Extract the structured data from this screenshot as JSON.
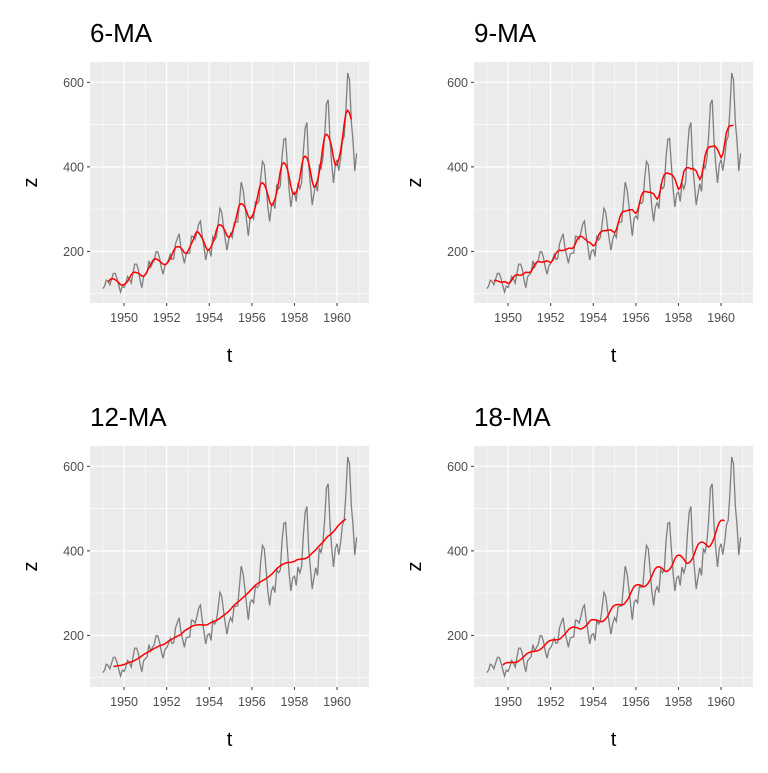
{
  "chart_data": [
    {
      "type": "line",
      "title": "6-MA",
      "ma_order": 6,
      "xlabel": "t",
      "ylabel": "z"
    },
    {
      "type": "line",
      "title": "9-MA",
      "ma_order": 9,
      "xlabel": "t",
      "ylabel": "z"
    },
    {
      "type": "line",
      "title": "12-MA",
      "ma_order": 12,
      "xlabel": "t",
      "ylabel": "z"
    },
    {
      "type": "line",
      "title": "18-MA",
      "ma_order": 18,
      "xlabel": "t",
      "ylabel": "z"
    }
  ],
  "shared": {
    "x_start": 1949,
    "frequency": 12,
    "xlim": [
      1948.4,
      1961.5
    ],
    "ylim": [
      78,
      648
    ],
    "x_ticks": [
      "1950",
      "1952",
      "1954",
      "1956",
      "1958",
      "1960"
    ],
    "y_ticks": [
      "200",
      "400",
      "600"
    ],
    "grid": true,
    "colors": {
      "raw": "#7f7f7f",
      "ma": "#ff0000",
      "panel": "#ebebeb",
      "grid": "#ffffff"
    },
    "z": [
      112,
      118,
      132,
      129,
      121,
      135,
      148,
      148,
      136,
      119,
      104,
      118,
      115,
      126,
      141,
      135,
      125,
      149,
      170,
      170,
      158,
      133,
      114,
      140,
      145,
      150,
      178,
      163,
      172,
      178,
      199,
      199,
      184,
      162,
      146,
      166,
      171,
      180,
      193,
      181,
      183,
      218,
      230,
      242,
      209,
      191,
      172,
      194,
      196,
      196,
      236,
      235,
      229,
      243,
      264,
      272,
      237,
      211,
      180,
      201,
      204,
      188,
      235,
      227,
      234,
      264,
      302,
      293,
      259,
      229,
      203,
      229,
      242,
      233,
      267,
      269,
      270,
      315,
      364,
      347,
      312,
      274,
      237,
      278,
      284,
      277,
      317,
      313,
      318,
      374,
      413,
      405,
      355,
      306,
      271,
      306,
      315,
      301,
      356,
      348,
      355,
      422,
      465,
      467,
      404,
      347,
      305,
      336,
      340,
      318,
      362,
      348,
      363,
      435,
      491,
      505,
      404,
      359,
      310,
      337,
      360,
      342,
      406,
      396,
      420,
      472,
      548,
      559,
      463,
      407,
      362,
      405,
      417,
      391,
      419,
      461,
      472,
      535,
      622,
      606,
      508,
      461,
      390,
      432
    ]
  }
}
